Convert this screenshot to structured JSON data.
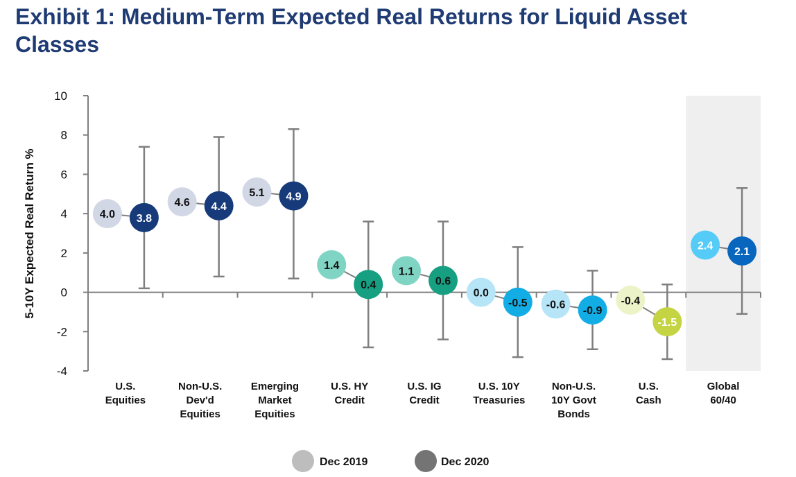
{
  "title": "Exhibit 1: Medium-Term Expected Real Returns for Liquid Asset Classes",
  "chart_data": {
    "type": "scatter",
    "title": "Exhibit 1: Medium-Term Expected Real Returns for Liquid Asset Classes",
    "ylabel": "5-10Y Expected Real Return %",
    "xlabel": "",
    "ylim": [
      -4,
      10
    ],
    "yticks": [
      10,
      8,
      6,
      4,
      2,
      0,
      -2,
      -4
    ],
    "grid": false,
    "legend_position": "bottom",
    "categories": [
      [
        "U.S.",
        "Equities"
      ],
      [
        "Non-U.S.",
        "Dev'd",
        "Equities"
      ],
      [
        "Emerging",
        "Market",
        "Equities"
      ],
      [
        "U.S. HY",
        "Credit"
      ],
      [
        "U.S. IG",
        "Credit"
      ],
      [
        "U.S. 10Y",
        "Treasuries"
      ],
      [
        "Non-U.S.",
        "10Y Govt",
        "Bonds"
      ],
      [
        "U.S.",
        "Cash"
      ],
      [
        "Global",
        "60/40"
      ]
    ],
    "series": [
      {
        "name": "Dec 2019",
        "values": [
          4.0,
          4.6,
          5.1,
          1.4,
          1.1,
          0.0,
          -0.6,
          -0.4,
          2.4
        ],
        "labels": [
          "4.0",
          "4.6",
          "5.1",
          "1.4",
          "1.1",
          "0.0",
          "-0.6",
          "-0.4",
          "2.4"
        ]
      },
      {
        "name": "Dec 2020",
        "values": [
          3.8,
          4.4,
          4.9,
          0.4,
          0.6,
          -0.5,
          -0.9,
          -1.5,
          2.1
        ],
        "labels": [
          "3.8",
          "4.4",
          "4.9",
          "0.4",
          "0.6",
          "-0.5",
          "-0.9",
          "-1.5",
          "2.1"
        ]
      }
    ],
    "error_range_dec2020": {
      "high": [
        7.4,
        7.9,
        8.3,
        3.6,
        3.6,
        2.3,
        1.1,
        0.4,
        5.3
      ],
      "low": [
        0.2,
        0.8,
        0.7,
        -2.8,
        -2.4,
        -3.3,
        -2.9,
        -3.4,
        -1.1
      ]
    },
    "highlighted_category": "Global 60/40",
    "colors": {
      "dec2019": [
        "#d1d7e5",
        "#d1d7e5",
        "#d1d7e5",
        "#80d4c3",
        "#80d4c3",
        "#b6e5f7",
        "#b6e5f7",
        "#edf3c9",
        "#55ccf8"
      ],
      "dec2020": [
        "#163a7a",
        "#163a7a",
        "#163a7a",
        "#169f80",
        "#169f80",
        "#13ade6",
        "#13ade6",
        "#c4d443",
        "#0866bf"
      ],
      "label2019": [
        "#111",
        "#111",
        "#111",
        "#111",
        "#111",
        "#111",
        "#111",
        "#111",
        "#ffffff"
      ],
      "label2020": [
        "#ffffff",
        "#ffffff",
        "#ffffff",
        "#111",
        "#111",
        "#111",
        "#111",
        "#ffffff",
        "#ffffff"
      ],
      "legend2019": "#bdbdbd",
      "legend2020": "#747474",
      "axis": "#7f7f7f",
      "highlight_band": "#efefef",
      "title": "#1f3b73"
    }
  }
}
